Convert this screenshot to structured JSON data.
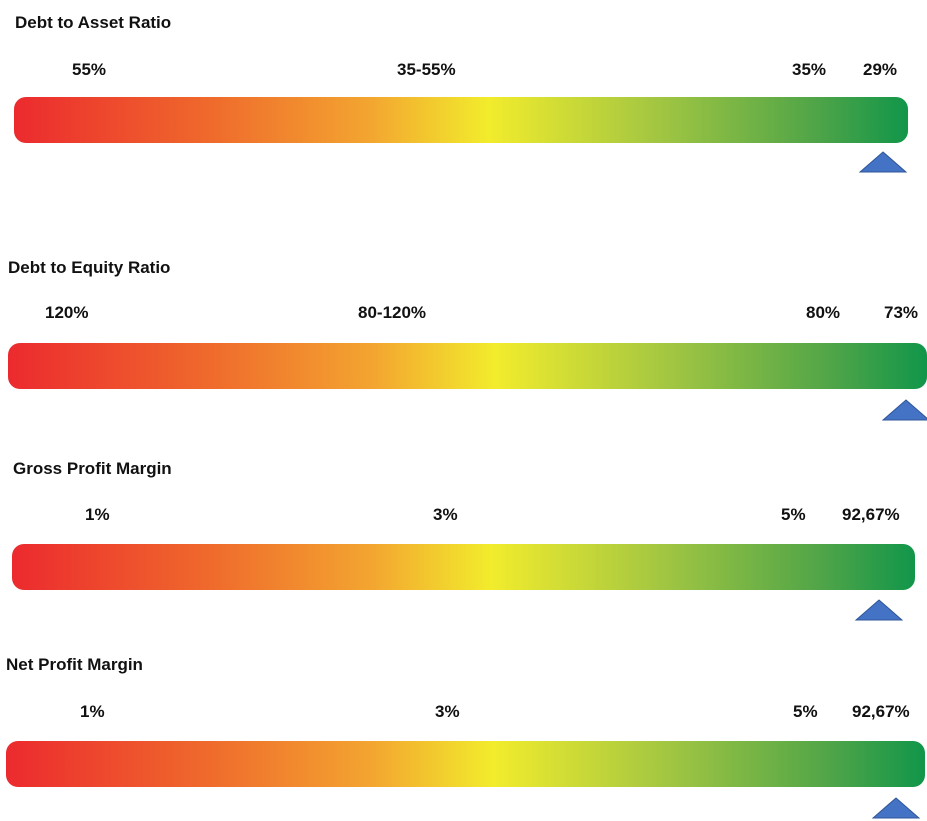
{
  "chart_data": [
    {
      "type": "gauge",
      "title": "Debt to Asset Ratio",
      "scale_labels": [
        "55%",
        "35-55%",
        "35%"
      ],
      "marker_label": "29%",
      "value_percent": 29,
      "direction": "lower-is-better",
      "gradient_colors": [
        "#ec2a2e",
        "#f3a630",
        "#f2ec2c",
        "#a2c642",
        "#11964a"
      ],
      "marker_color": "#4472c4"
    },
    {
      "type": "gauge",
      "title": "Debt to Equity Ratio",
      "scale_labels": [
        "120%",
        "80-120%",
        "80%"
      ],
      "marker_label": "73%",
      "value_percent": 73,
      "direction": "lower-is-better",
      "gradient_colors": [
        "#ec2a2e",
        "#f3a630",
        "#f2ec2c",
        "#a2c642",
        "#11964a"
      ],
      "marker_color": "#4472c4"
    },
    {
      "type": "gauge",
      "title": "Gross Profit Margin",
      "scale_labels": [
        "1%",
        "3%",
        "5%"
      ],
      "marker_label": "92,67%",
      "value_percent": 92.67,
      "direction": "higher-is-better",
      "gradient_colors": [
        "#ec2a2e",
        "#f3a630",
        "#f2ec2c",
        "#a2c642",
        "#11964a"
      ],
      "marker_color": "#4472c4"
    },
    {
      "type": "gauge",
      "title": "Net Profit Margin",
      "scale_labels": [
        "1%",
        "3%",
        "5%"
      ],
      "marker_label": "92,67%",
      "value_percent": 92.67,
      "direction": "higher-is-better",
      "gradient_colors": [
        "#ec2a2e",
        "#f3a630",
        "#f2ec2c",
        "#a2c642",
        "#11964a"
      ],
      "marker_color": "#4472c4"
    }
  ]
}
